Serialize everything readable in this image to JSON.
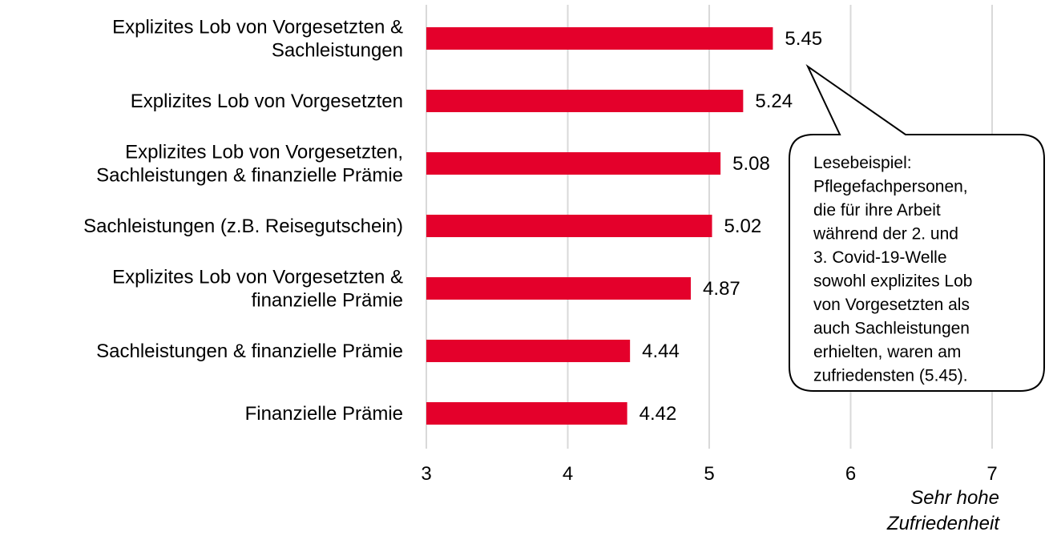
{
  "chart_data": {
    "type": "barh",
    "categories": [
      "Explizites Lob von Vorgesetzten &\nSachleistungen",
      "Explizites Lob von Vorgesetzten",
      "Explizites Lob von Vorgesetzten,\nSachleistungen & finanzielle Prämie",
      "Sachleistungen (z.B. Reisegutschein)",
      "Explizites Lob von Vorgesetzten &\nfinanzielle Prämie",
      "Sachleistungen & finanzielle Prämie",
      "Finanzielle Prämie"
    ],
    "values": [
      5.45,
      5.24,
      5.08,
      5.02,
      4.87,
      4.44,
      4.42
    ],
    "color": "#e4002b",
    "xlim": [
      3,
      7
    ],
    "xticks": [
      3,
      4,
      5,
      6,
      7
    ],
    "grid": true,
    "x_axis_label": "Sehr hohe\nZufriedenheit",
    "annotation": "Lesebeispiel:\nPflegefachpersonen,\ndie für ihre Arbeit\nwährend der 2. und\n3. Covid-19-Welle\nsowohl explizites Lob\nvon Vorgesetzten als\nauch Sachleistungen\nerhielten, waren am\nzufriedensten (5.45)."
  }
}
